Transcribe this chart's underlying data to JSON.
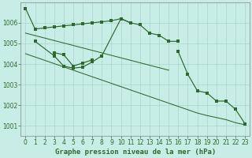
{
  "title": "Graphe pression niveau de la mer (hPa)",
  "bg_color": "#c8ece6",
  "line_color": "#2d6a2d",
  "grid_color": "#a8d4ce",
  "series1": {
    "x": [
      0,
      1,
      2,
      3,
      4,
      5,
      6,
      7,
      8,
      9,
      10,
      11,
      12,
      13,
      14,
      15,
      16
    ],
    "y": [
      1006.7,
      1005.7,
      1005.75,
      1005.8,
      1005.85,
      1005.9,
      1005.95,
      1006.0,
      1006.05,
      1006.1,
      1006.2,
      1006.0,
      1005.9,
      1005.5,
      1005.4,
      1005.1,
      1005.1
    ]
  },
  "series2": {
    "x": [
      1,
      3,
      4,
      5,
      6,
      7,
      8,
      10,
      11
    ],
    "y": [
      1005.1,
      1004.4,
      1003.9,
      1003.8,
      1003.85,
      1004.1,
      1004.4,
      1006.2,
      1006.0
    ]
  },
  "series3": {
    "x": [
      3,
      4,
      5,
      6,
      7
    ],
    "y": [
      1004.55,
      1004.45,
      1003.9,
      1004.05,
      1004.2
    ]
  },
  "series4": {
    "x": [
      0,
      1,
      2,
      3,
      4,
      5,
      6,
      7,
      8,
      9,
      10,
      11,
      12,
      13,
      14,
      15,
      16,
      17,
      18,
      19,
      20,
      21,
      22,
      23
    ],
    "y": [
      1005.5,
      1005.38,
      1005.26,
      1005.14,
      1005.02,
      1004.9,
      1004.78,
      1004.66,
      1004.54,
      1004.42,
      1004.3,
      1004.18,
      1004.06,
      1003.94,
      1003.82,
      1003.7,
      1004.6,
      1003.5,
      1002.7,
      1002.6,
      1002.2,
      1002.2,
      1001.8,
      1001.1
    ]
  },
  "series5": {
    "x": [
      0,
      1,
      2,
      3,
      4,
      5,
      6,
      7,
      8,
      9,
      10,
      11,
      12,
      13,
      14,
      15,
      16,
      17,
      18,
      19,
      20,
      21,
      22,
      23
    ],
    "y": [
      1004.5,
      1004.34,
      1004.18,
      1004.02,
      1003.86,
      1003.7,
      1003.54,
      1003.38,
      1003.22,
      1003.06,
      1002.9,
      1002.74,
      1002.58,
      1002.42,
      1002.26,
      1002.1,
      1001.94,
      1001.78,
      1001.62,
      1001.5,
      1001.4,
      1001.3,
      1001.15,
      1001.05
    ]
  },
  "ylim": [
    1000.5,
    1007.0
  ],
  "yticks": [
    1001,
    1002,
    1003,
    1004,
    1005,
    1006
  ],
  "xticks": [
    0,
    1,
    2,
    3,
    4,
    5,
    6,
    7,
    8,
    9,
    10,
    11,
    12,
    13,
    14,
    15,
    16,
    17,
    18,
    19,
    20,
    21,
    22,
    23
  ],
  "tick_fontsize": 5.5,
  "title_fontsize": 6.5
}
